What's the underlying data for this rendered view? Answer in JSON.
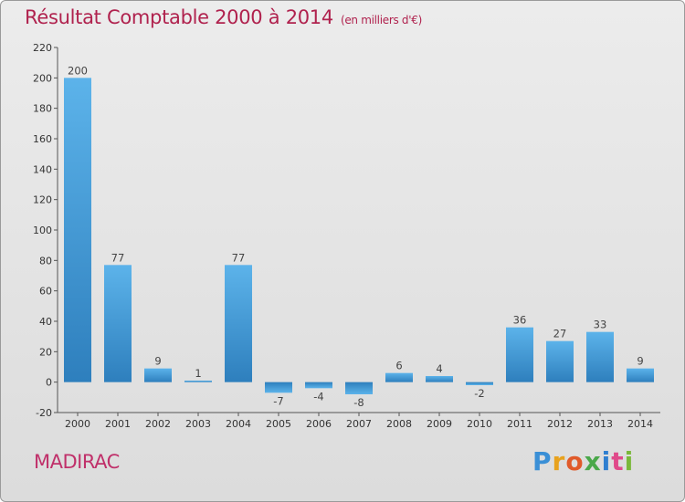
{
  "title": "Résultat Comptable 2000 à 2014",
  "subtitle": "(en milliers d'€)",
  "town": "MADIRAC",
  "logo": [
    "P",
    "r",
    "o",
    "x",
    "i",
    "t",
    "i"
  ],
  "logo_colors": [
    "#3a8fd6",
    "#e8a21e",
    "#e05a2a",
    "#4aa84a",
    "#2f7fd0",
    "#e04a8a",
    "#7ab83a"
  ],
  "colors": {
    "title": "#b0224e",
    "town": "#c0306a",
    "bar_light": "#5cb3ea",
    "bar_dark": "#2e82c0",
    "grid": "#c8c8c8"
  },
  "chart_data": {
    "type": "bar",
    "categories": [
      "2000",
      "2001",
      "2002",
      "2003",
      "2004",
      "2005",
      "2006",
      "2007",
      "2008",
      "2009",
      "2010",
      "2011",
      "2012",
      "2013",
      "2014"
    ],
    "values": [
      200,
      77,
      9,
      1,
      77,
      -7,
      -4,
      -8,
      6,
      4,
      -2,
      36,
      27,
      33,
      9
    ],
    "data_labels": [
      "200",
      "77",
      "9",
      "1",
      "77",
      "-7",
      "-4",
      "-8",
      "6",
      "4",
      "-2",
      "36",
      "27",
      "33",
      "9"
    ],
    "ylim": [
      -20,
      220
    ],
    "yticks": [
      -20,
      0,
      20,
      40,
      60,
      80,
      100,
      120,
      140,
      160,
      180,
      200,
      220
    ],
    "grid": false
  }
}
